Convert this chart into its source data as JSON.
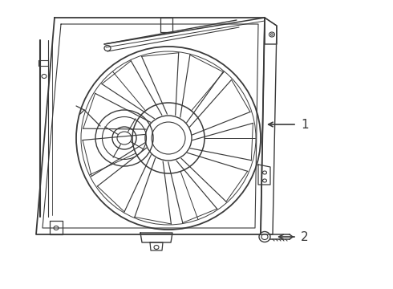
{
  "background_color": "#ffffff",
  "line_color": "#3a3a3a",
  "line_width": 1.0,
  "figsize": [
    4.9,
    3.6
  ],
  "dpi": 100,
  "label1_text": "1",
  "label2_text": "2",
  "label_fontsize": 11
}
